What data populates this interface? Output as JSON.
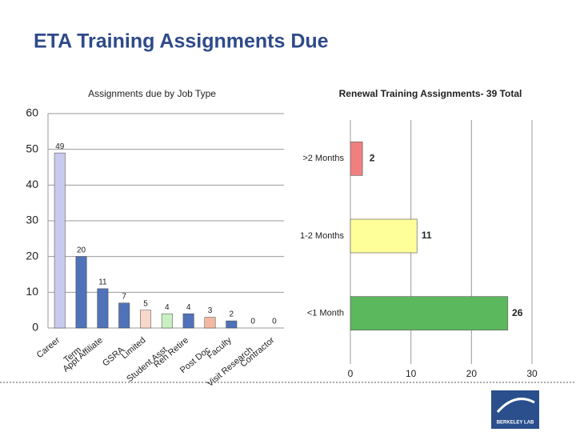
{
  "slide": {
    "title": "ETA Training Assignments Due"
  },
  "logo": {
    "text": "BERKELEY LAB"
  },
  "chart_data": [
    {
      "type": "bar",
      "title": "Assignments due by Job Type",
      "categories": [
        "Career",
        "Term",
        "Appt Affiliate",
        "GSRA",
        "Limited",
        "Student Asst",
        "Reh Retire",
        "Post Doc",
        "Faculty",
        "Visit Research",
        "Contractor"
      ],
      "values": [
        49,
        20,
        11,
        7,
        5,
        4,
        4,
        3,
        2,
        0,
        0
      ],
      "colors": [
        "#c8cbee",
        "#4f72b8",
        "#4f72b8",
        "#4f72b8",
        "#f8d8cc",
        "#c8f0c0",
        "#4f72b8",
        "#f4b8a0",
        "#4f72b8",
        "#4f72b8",
        "#4f72b8"
      ],
      "ylim": [
        0,
        60
      ],
      "yticks": [
        0,
        10,
        20,
        30,
        40,
        50,
        60
      ],
      "grid": true
    },
    {
      "type": "hbar",
      "title": "Renewal Training Assignments- 39 Total",
      "categories": [
        ">2 Months",
        "1-2 Months",
        "<1 Month"
      ],
      "values": [
        2,
        11,
        26
      ],
      "colors": [
        "#f08080",
        "#ffff99",
        "#5cb85c"
      ],
      "xlim": [
        0,
        30
      ],
      "xticks": [
        0,
        10,
        20,
        30
      ],
      "grid": true
    }
  ]
}
